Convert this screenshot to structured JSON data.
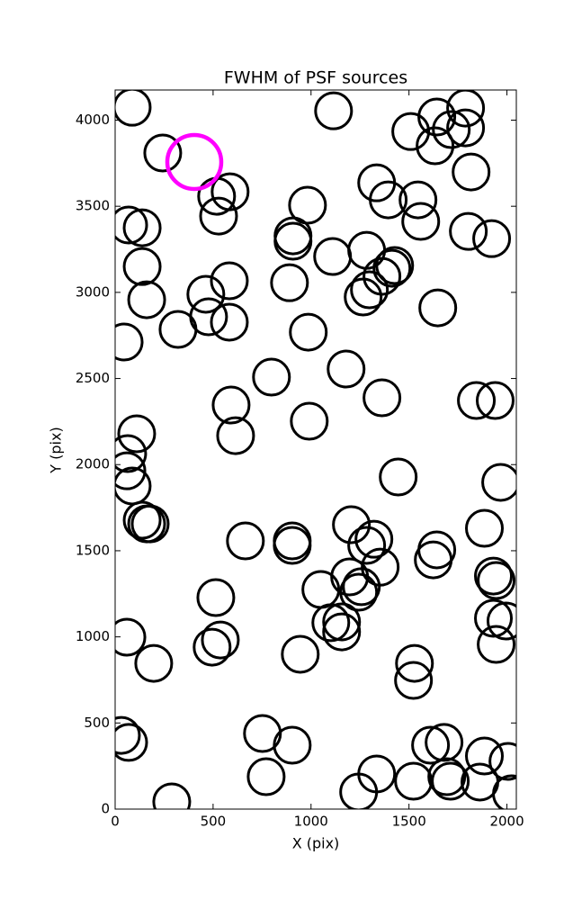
{
  "chart_data": {
    "type": "scatter",
    "title": "FWHM of PSF sources",
    "x_label": "X (pix)",
    "y_label": "Y (pix)",
    "xlim": [
      0,
      2048
    ],
    "ylim": [
      0,
      4175
    ],
    "xticks": [
      0,
      500,
      1000,
      1500,
      2000
    ],
    "yticks": [
      0,
      500,
      1000,
      1500,
      2000,
      2500,
      3000,
      3500,
      4000
    ],
    "series": [
      {
        "color": "#000000",
        "x": [
          87,
          243,
          518,
          587,
          528,
          69,
          138,
          138,
          583,
          463,
          161,
          477,
          583,
          321,
          46,
          982,
          908,
          908,
          1110,
          890,
          986,
          798,
          1179,
          592,
          615,
          991,
          110,
          64,
          60,
          87,
          138,
          161,
          179,
          665,
          904,
          904,
          514,
          537,
          495,
          60,
          197,
          945,
          1115,
          1284,
          1413,
          1362,
          1266,
          1298,
          1427,
          1335,
          1394,
          1546,
          1560,
          1509,
          1642,
          1633,
          1716,
          1789,
          1789,
          1817,
          1803,
          1922,
          1647,
          1362,
          1844,
          1940,
          1445,
          1968,
          1885,
          1206,
          1321,
          1284,
          1353,
          1642,
          1624,
          1197,
          1257,
          1243,
          1050,
          1101,
          1156,
          1156,
          1931,
          1945,
          1931,
          1995,
          1945,
          1528,
          1523,
          752,
          771,
          904,
          289,
          32,
          69,
          1610,
          1679,
          1693,
          1711,
          1523,
          1335,
          1243,
          1862,
          1885,
          2005,
          2023
        ],
        "y": [
          4075,
          3809,
          3558,
          3584,
          3443,
          3391,
          3375,
          3150,
          3067,
          2989,
          2957,
          2858,
          2827,
          2785,
          2712,
          3506,
          3328,
          3297,
          3208,
          3056,
          2769,
          2508,
          2555,
          2346,
          2168,
          2252,
          2179,
          2064,
          1964,
          1876,
          1677,
          1656,
          1656,
          1557,
          1557,
          1531,
          1228,
          982,
          940,
          998,
          846,
          899,
          4054,
          3244,
          3140,
          3093,
          2973,
          3015,
          3156,
          3636,
          3537,
          3537,
          3412,
          3934,
          4018,
          3851,
          3945,
          4070,
          3955,
          3699,
          3354,
          3312,
          2910,
          2388,
          2372,
          2372,
          1928,
          1897,
          1630,
          1651,
          1567,
          1531,
          1405,
          1505,
          1447,
          1348,
          1291,
          1259,
          1275,
          1082,
          1087,
          1029,
          1353,
          1327,
          1108,
          1092,
          956,
          846,
          747,
          439,
          188,
          371,
          42,
          428,
          387,
          371,
          387,
          188,
          162,
          162,
          204,
          99,
          157,
          308,
          277,
          89
        ]
      },
      {
        "color": "#ff00ff",
        "x": [
          404
        ],
        "y": [
          3757
        ]
      }
    ]
  }
}
